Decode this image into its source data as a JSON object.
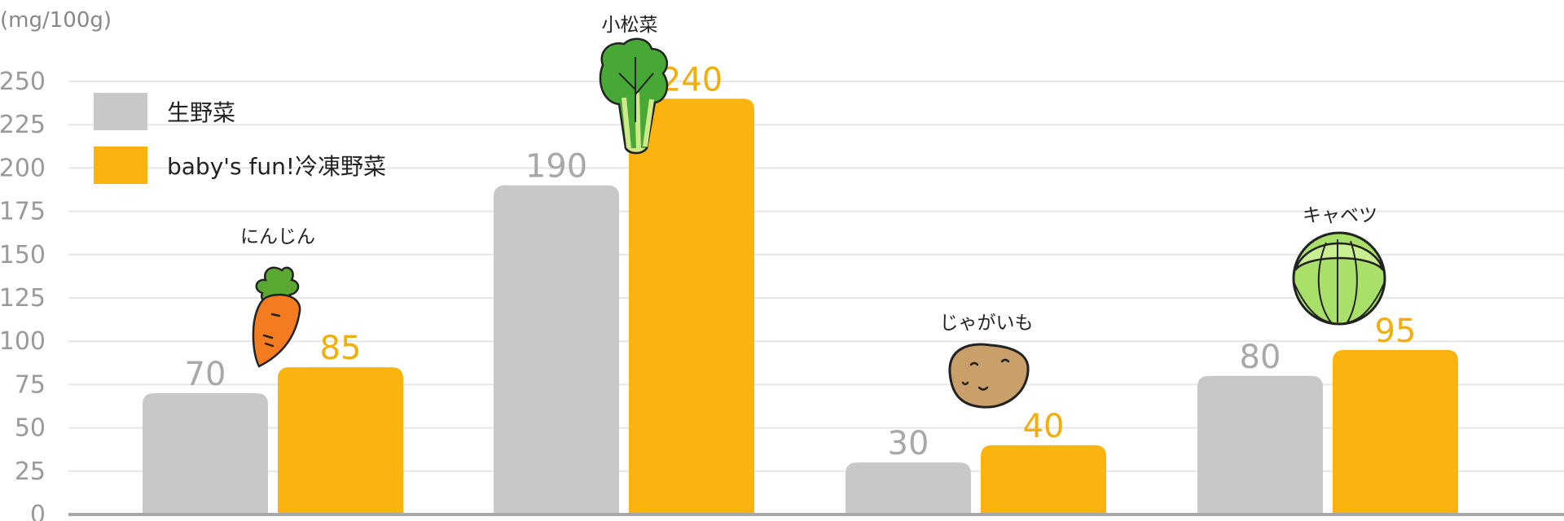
{
  "chart_data": {
    "type": "bar",
    "unit": "(mg/100g)",
    "categories": [
      "にんじん",
      "小松菜",
      "じゃがいも",
      "キャベツ"
    ],
    "series": [
      {
        "name": "生野菜",
        "values": [
          70,
          190,
          30,
          80
        ],
        "color": "#c8c8c8",
        "label_color": "#a8a8a8"
      },
      {
        "name": "baby's fun!冷凍野菜",
        "values": [
          85,
          240,
          40,
          95
        ],
        "color": "#fbb40f",
        "label_color": "#f2ae0a"
      }
    ],
    "ylim": [
      0,
      250
    ],
    "yticks": [
      "0",
      "25",
      "50",
      "75",
      "100",
      "125",
      "150",
      "175",
      "200",
      "225",
      "250"
    ],
    "grid": true,
    "legend": "top-left",
    "category_icons": [
      "carrot-icon",
      "komatsuna-icon",
      "potato-icon",
      "cabbage-icon"
    ]
  }
}
